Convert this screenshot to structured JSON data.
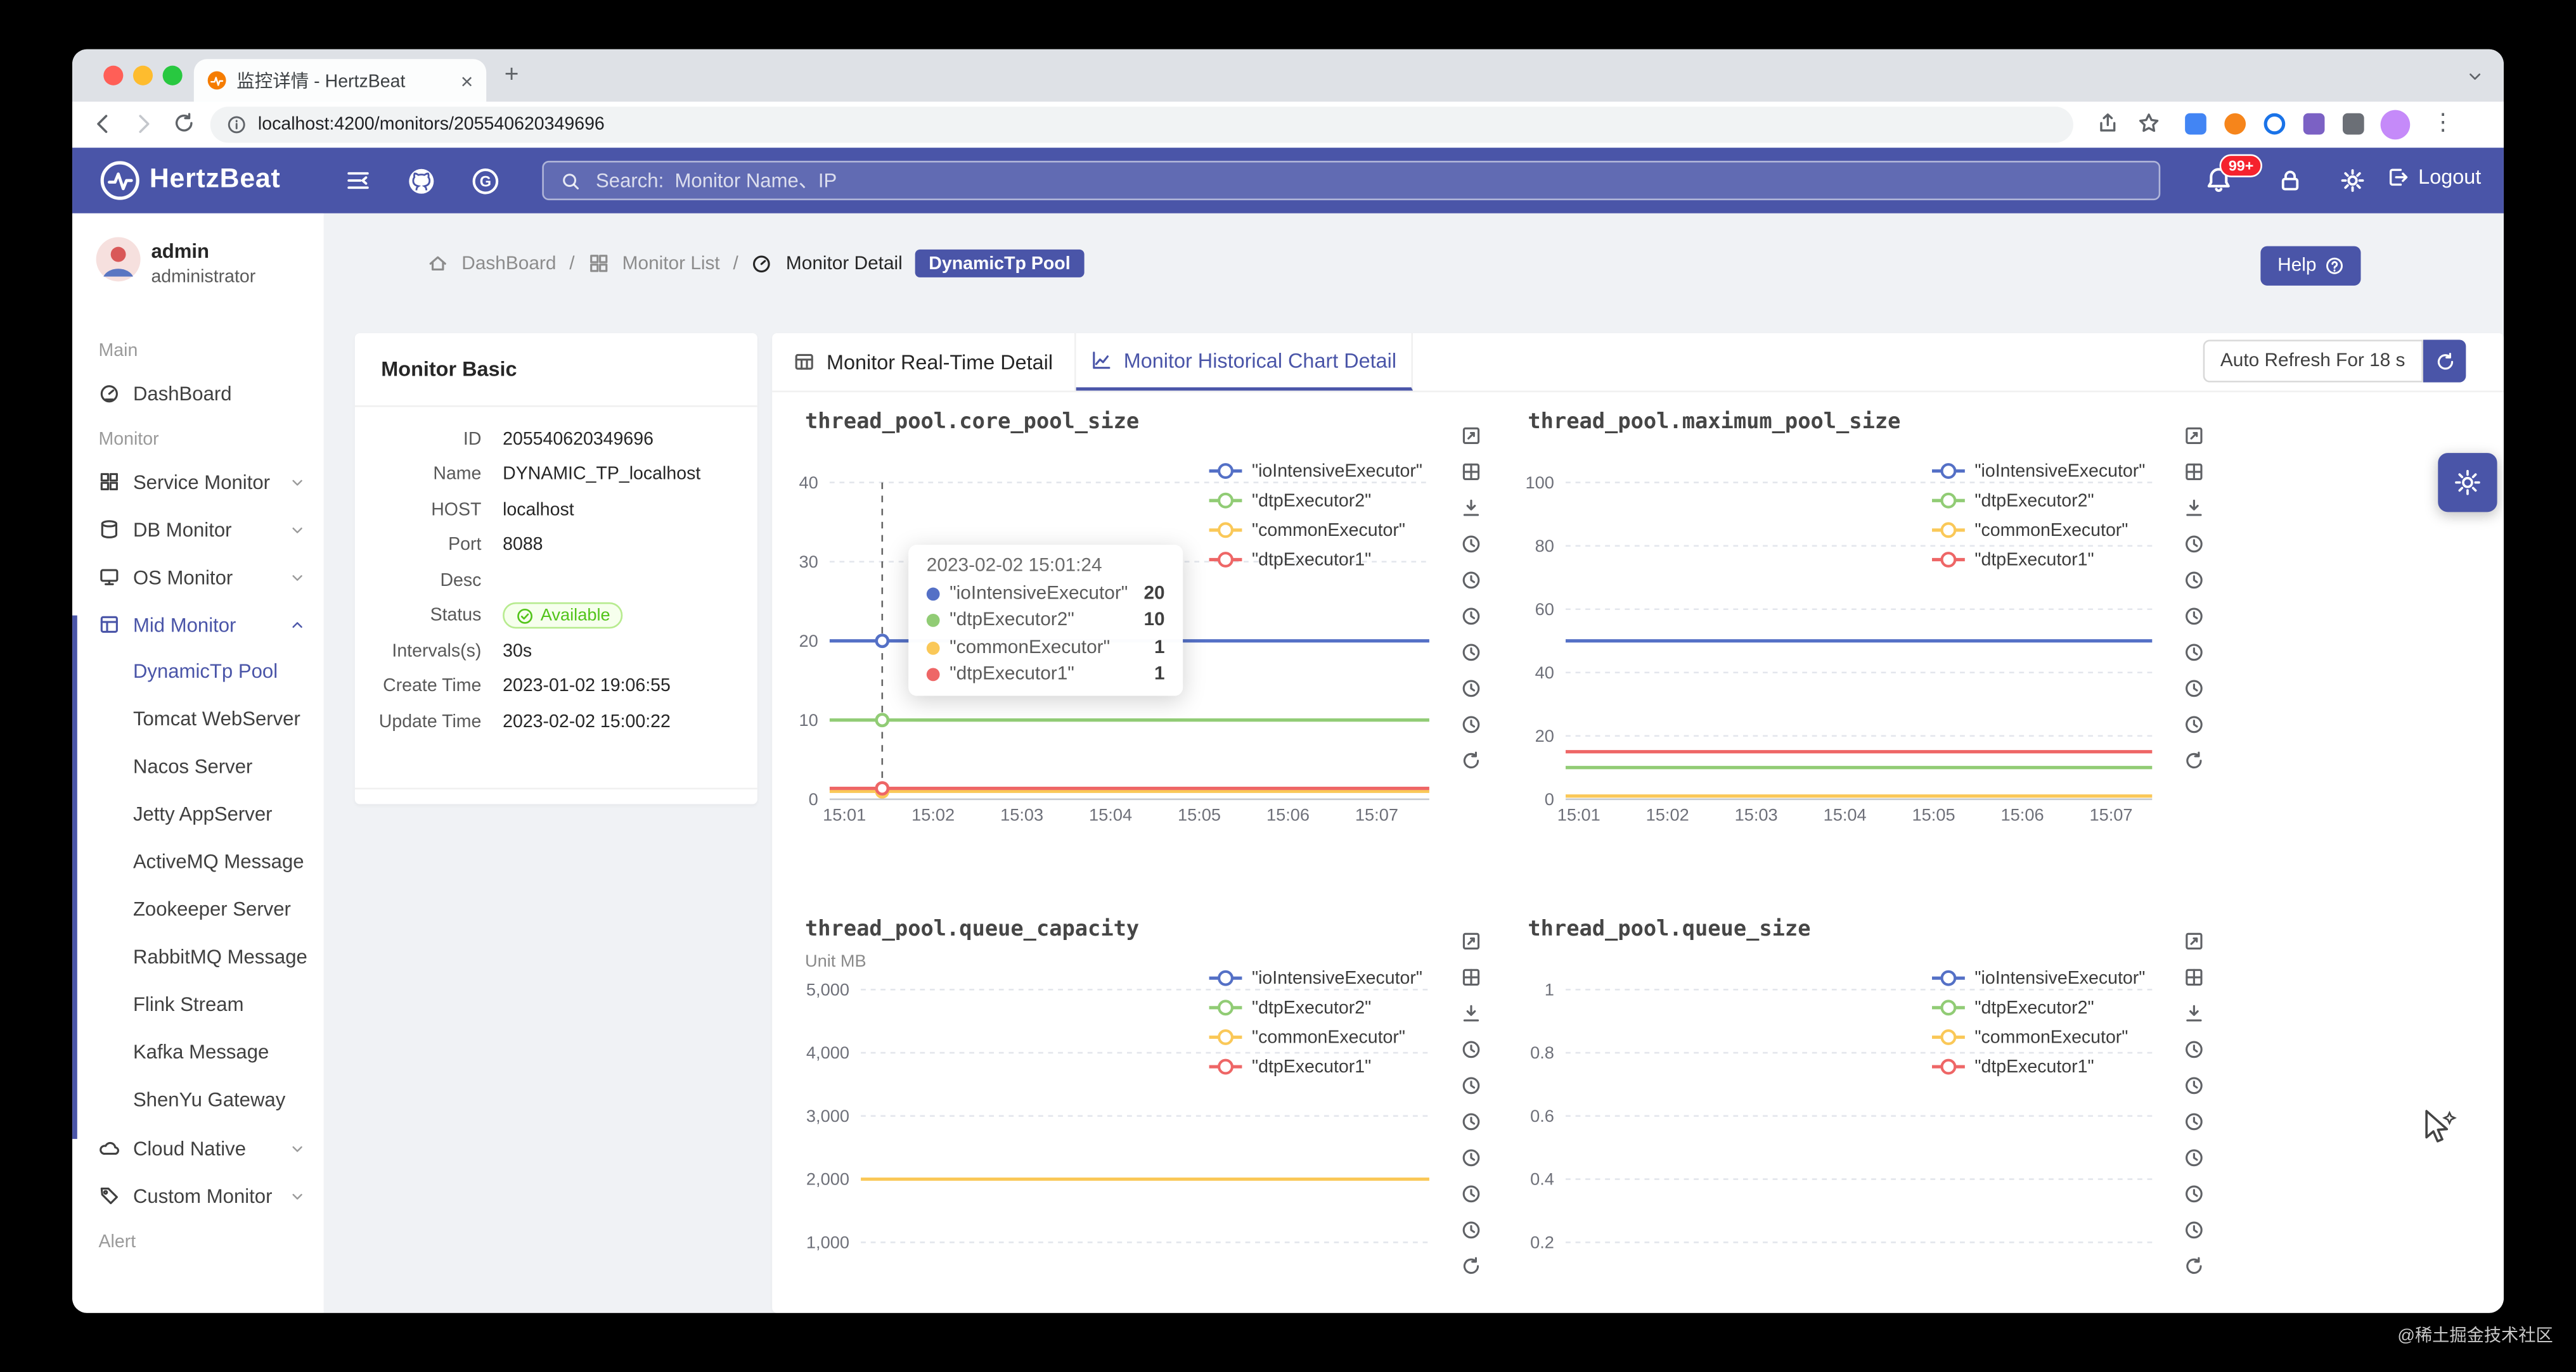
{
  "colors": {
    "accent": "#4a55a8",
    "badge_red": "#f5222d",
    "status_green": "#52c41a",
    "status_green_bg": "#f6ffed",
    "status_green_border": "#b7eb8f",
    "chart_palette": [
      "#5470c6",
      "#91cc75",
      "#fac858",
      "#ee6666"
    ]
  },
  "browser": {
    "tab_title": "监控详情 - HertzBeat",
    "url": "localhost:4200/monitors/205540620349696"
  },
  "glyphs": {
    "close": "×",
    "new_tab": "+",
    "kebab": "⋮"
  },
  "header": {
    "brand": "HertzBeat",
    "search_placeholder": "Search:  Monitor Name、IP",
    "notification_badge": "99+",
    "logout_label": "Logout"
  },
  "sidebar": {
    "user": {
      "name": "admin",
      "role": "administrator"
    },
    "sections": [
      {
        "label": "Main",
        "items": [
          {
            "label": "DashBoard",
            "icon": "dashboard"
          }
        ]
      },
      {
        "label": "Monitor",
        "items": [
          {
            "label": "Service Monitor",
            "icon": "appstore",
            "expandable": true
          },
          {
            "label": "DB Monitor",
            "icon": "database",
            "expandable": true
          },
          {
            "label": "OS Monitor",
            "icon": "desktop",
            "expandable": true
          },
          {
            "label": "Mid Monitor",
            "icon": "layout",
            "expandable": true,
            "expanded": true,
            "active": true,
            "selected_child": "DynamicTp Pool",
            "children": [
              "DynamicTp Pool",
              "Tomcat WebServer",
              "Nacos Server",
              "Jetty AppServer",
              "ActiveMQ Message",
              "Zookeeper Server",
              "RabbitMQ Message",
              "Flink Stream",
              "Kafka Message",
              "ShenYu Gateway"
            ]
          },
          {
            "label": "Cloud Native",
            "icon": "cloud",
            "expandable": true
          },
          {
            "label": "Custom Monitor",
            "icon": "tag",
            "expandable": true
          }
        ]
      },
      {
        "label": "Alert",
        "items": []
      }
    ]
  },
  "breadcrumb": {
    "items": [
      "DashBoard",
      "Monitor List",
      "Monitor Detail"
    ],
    "separator": "/",
    "badge": "DynamicTp Pool"
  },
  "help_label": "Help",
  "monitor_basic": {
    "title": "Monitor Basic",
    "fields": [
      {
        "label": "ID",
        "value": "205540620349696"
      },
      {
        "label": "Name",
        "value": "DYNAMIC_TP_localhost"
      },
      {
        "label": "HOST",
        "value": "localhost"
      },
      {
        "label": "Port",
        "value": "8088"
      },
      {
        "label": "Desc",
        "value": ""
      },
      {
        "label": "Status",
        "value": "Available",
        "type": "status"
      },
      {
        "label": "Intervals(s)",
        "value": "30s"
      },
      {
        "label": "Create Time",
        "value": "2023-01-02 19:06:55"
      },
      {
        "label": "Update Time",
        "value": "2023-02-02 15:00:22"
      }
    ]
  },
  "tabs": [
    {
      "label": "Monitor Real-Time Detail",
      "active": false
    },
    {
      "label": "Monitor Historical Chart Detail",
      "active": true
    }
  ],
  "auto_refresh_label": "Auto Refresh For 18 s",
  "chart_toolbox": [
    "expand-icon",
    "layout-icon",
    "download-icon",
    "clock-icon",
    "clock-icon",
    "clock-icon",
    "clock-icon",
    "clock-icon",
    "clock-icon",
    "refresh-icon"
  ],
  "chart_data": [
    {
      "type": "line",
      "title": "thread_pool.core_pool_size",
      "x": [
        "15:01",
        "15:02",
        "15:03",
        "15:04",
        "15:05",
        "15:06",
        "15:07"
      ],
      "ylim": [
        0,
        40
      ],
      "grid": "horizontal-dotted",
      "legend_position": "top-right",
      "yticks": [
        {
          "value": 0,
          "label": "0"
        },
        {
          "value": 10,
          "label": "10"
        },
        {
          "value": 20,
          "label": "20"
        },
        {
          "value": 30,
          "label": "30"
        },
        {
          "value": 40,
          "label": "40"
        }
      ],
      "series": [
        {
          "name": "\"ioIntensiveExecutor\"",
          "color": "#5470c6",
          "value": 20
        },
        {
          "name": "\"dtpExecutor2\"",
          "color": "#91cc75",
          "value": 10
        },
        {
          "name": "\"commonExecutor\"",
          "color": "#fac858",
          "value": 1
        },
        {
          "name": "\"dtpExecutor1\"",
          "color": "#ee6666",
          "value": 1
        }
      ],
      "tooltip": {
        "title": "2023-02-02 15:01:24",
        "rows": [
          {
            "name": "\"ioIntensiveExecutor\"",
            "color": "#5470c6",
            "value": 20
          },
          {
            "name": "\"dtpExecutor2\"",
            "color": "#91cc75",
            "value": 10
          },
          {
            "name": "\"commonExecutor\"",
            "color": "#fac858",
            "value": 1
          },
          {
            "name": "\"dtpExecutor1\"",
            "color": "#ee6666",
            "value": 1
          }
        ]
      }
    },
    {
      "type": "line",
      "title": "thread_pool.maximum_pool_size",
      "x": [
        "15:01",
        "15:02",
        "15:03",
        "15:04",
        "15:05",
        "15:06",
        "15:07"
      ],
      "ylim": [
        0,
        100
      ],
      "grid": "horizontal-dotted",
      "legend_position": "top-right",
      "yticks": [
        {
          "value": 0,
          "label": "0"
        },
        {
          "value": 20,
          "label": "20"
        },
        {
          "value": 40,
          "label": "40"
        },
        {
          "value": 60,
          "label": "60"
        },
        {
          "value": 80,
          "label": "80"
        },
        {
          "value": 100,
          "label": "100"
        }
      ],
      "series": [
        {
          "name": "\"ioIntensiveExecutor\"",
          "color": "#5470c6",
          "value": 50
        },
        {
          "name": "\"dtpExecutor2\"",
          "color": "#91cc75",
          "value": 10
        },
        {
          "name": "\"commonExecutor\"",
          "color": "#fac858",
          "value": 1
        },
        {
          "name": "\"dtpExecutor1\"",
          "color": "#ee6666",
          "value": 15
        }
      ]
    },
    {
      "type": "line",
      "title": "thread_pool.queue_capacity",
      "unit": "Unit  MB",
      "x": [],
      "ylim": [
        0,
        5000
      ],
      "grid": "horizontal-dotted",
      "legend_position": "top-right",
      "yticks": [
        {
          "value": 1000,
          "label": "1,000"
        },
        {
          "value": 2000,
          "label": "2,000"
        },
        {
          "value": 3000,
          "label": "3,000"
        },
        {
          "value": 4000,
          "label": "4,000"
        },
        {
          "value": 5000,
          "label": "5,000"
        }
      ],
      "series": [
        {
          "name": "\"ioIntensiveExecutor\"",
          "color": "#5470c6",
          "value": null
        },
        {
          "name": "\"dtpExecutor2\"",
          "color": "#91cc75",
          "value": null
        },
        {
          "name": "\"commonExecutor\"",
          "color": "#fac858",
          "value": 2000
        },
        {
          "name": "\"dtpExecutor1\"",
          "color": "#ee6666",
          "value": null
        }
      ]
    },
    {
      "type": "line",
      "title": "thread_pool.queue_size",
      "x": [],
      "ylim": [
        0,
        1
      ],
      "grid": "horizontal-dotted",
      "legend_position": "top-right",
      "yticks": [
        {
          "value": 0.2,
          "label": "0.2"
        },
        {
          "value": 0.4,
          "label": "0.4"
        },
        {
          "value": 0.6,
          "label": "0.6"
        },
        {
          "value": 0.8,
          "label": "0.8"
        },
        {
          "value": 1,
          "label": "1"
        }
      ],
      "series": [
        {
          "name": "\"ioIntensiveExecutor\"",
          "color": "#5470c6",
          "value": null
        },
        {
          "name": "\"dtpExecutor2\"",
          "color": "#91cc75",
          "value": null
        },
        {
          "name": "\"commonExecutor\"",
          "color": "#fac858",
          "value": null
        },
        {
          "name": "\"dtpExecutor1\"",
          "color": "#ee6666",
          "value": null
        }
      ]
    }
  ],
  "watermark": "@稀土掘金技术社区"
}
